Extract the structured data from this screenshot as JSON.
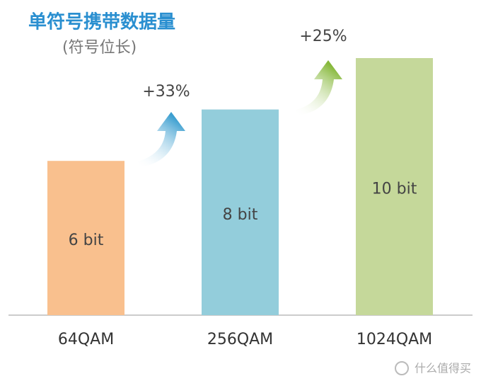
{
  "chart_data": {
    "type": "bar",
    "title": "单符号携带数据量",
    "subtitle": "(符号位长)",
    "categories": [
      "64QAM",
      "256QAM",
      "1024QAM"
    ],
    "values": [
      6,
      8,
      10
    ],
    "value_labels": [
      "6 bit",
      "8 bit",
      "10 bit"
    ],
    "colors": [
      "#f9c08e",
      "#93cddb",
      "#c5d89a"
    ],
    "ylim": [
      0,
      10
    ],
    "annotations": [
      "+33%",
      "+25%"
    ],
    "watermark": "什么值得买"
  }
}
